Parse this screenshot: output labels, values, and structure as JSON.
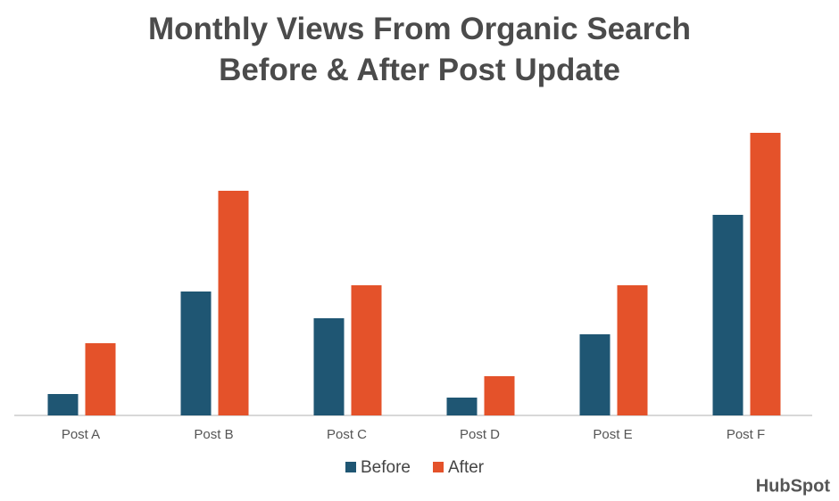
{
  "chart_data": {
    "type": "bar",
    "title": "Monthly Views From Organic Search Before & After Post Update",
    "categories": [
      "Post A",
      "Post B",
      "Post C",
      "Post D",
      "Post E",
      "Post F"
    ],
    "series": [
      {
        "name": "Before",
        "color": "#1f5673",
        "values": [
          24,
          139,
          109,
          20,
          91,
          225
        ]
      },
      {
        "name": "After",
        "color": "#e4522a",
        "values": [
          81,
          252,
          146,
          44,
          146,
          317
        ]
      }
    ],
    "brand": "HubSpot"
  }
}
